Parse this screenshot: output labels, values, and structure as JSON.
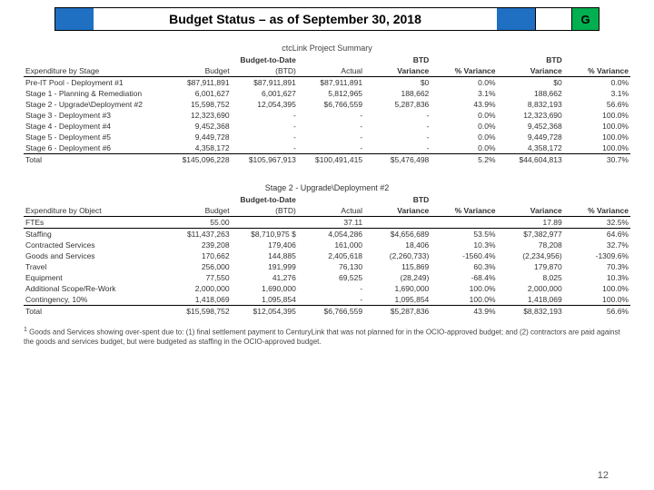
{
  "title": "Budget Status – as of September 30, 2018",
  "status_letter": "G",
  "status_bg": "#00b050",
  "page_number": "12",
  "proj_summary_label": "ctcLink Project Summary",
  "t1": {
    "h_exp": "Expenditure by Stage",
    "h_budget": "Budget",
    "h_btd1": "Budget-to-Date",
    "h_btd2": "(BTD)",
    "h_actual": "Actual",
    "h_btd_var": "BTD",
    "h_var": "Variance",
    "h_pct": "% Variance",
    "h_btd_var2": "BTD",
    "h_var2": "Variance",
    "h_pct2": "% Variance",
    "rows": [
      {
        "l": "Pre-IT Pool - Deployment #1",
        "b": "$87,911,891",
        "btd": "$87,911,891",
        "a": "$87,911,891",
        "v": "$0",
        "p": "0.0%",
        "v2": "$0",
        "p2": "0.0%"
      },
      {
        "l": "Stage 1 - Planning & Remediation",
        "b": "6,001,627",
        "btd": "6,001,627",
        "a": "5,812,965",
        "v": "188,662",
        "p": "3.1%",
        "v2": "188,662",
        "p2": "3.1%"
      },
      {
        "l": "Stage 2 - Upgrade\\Deployment #2",
        "b": "15,598,752",
        "btd": "12,054,395",
        "a": "$6,766,559",
        "v": "5,287,836",
        "p": "43.9%",
        "v2": "8,832,193",
        "p2": "56.6%"
      },
      {
        "l": "Stage 3 - Deployment #3",
        "b": "12,323,690",
        "btd": "-",
        "a": "-",
        "v": "-",
        "p": "0.0%",
        "v2": "12,323,690",
        "p2": "100.0%"
      },
      {
        "l": "Stage 4 - Deployment #4",
        "b": "9,452,368",
        "btd": "-",
        "a": "-",
        "v": "-",
        "p": "0.0%",
        "v2": "9,452,368",
        "p2": "100.0%"
      },
      {
        "l": "Stage 5 - Deployment #5",
        "b": "9,449,728",
        "btd": "-",
        "a": "-",
        "v": "-",
        "p": "0.0%",
        "v2": "9,449,728",
        "p2": "100.0%"
      },
      {
        "l": "Stage 6 - Deployment #6",
        "b": "4,358,172",
        "btd": "-",
        "a": "-",
        "v": "-",
        "p": "0.0%",
        "v2": "4,358,172",
        "p2": "100.0%"
      }
    ],
    "total": {
      "l": "Total",
      "b": "$145,096,228",
      "btd": "$105,967,913",
      "a": "$100,491,415",
      "v": "$5,476,498",
      "p": "5.2%",
      "v2": "$44,604,813",
      "p2": "30.7%"
    }
  },
  "t2_title": "Stage 2 - Upgrade\\Deployment #2",
  "t2": {
    "h_exp": "Expenditure by Object",
    "h_budget": "Budget",
    "h_btd1": "Budget-to-Date",
    "h_btd2": "(BTD)",
    "h_actual": "Actual",
    "h_btd_var": "BTD",
    "h_var": "Variance",
    "h_pct": "% Variance",
    "h_var2": "Variance",
    "h_pct2": "% Variance",
    "fte": {
      "l": "FTEs",
      "b": "55.00",
      "btd": "",
      "a": "37.11",
      "v": "",
      "p": "",
      "v2": "17.89",
      "p2": "32.5%"
    },
    "rows": [
      {
        "l": "Staffing",
        "b": "$11,437,263",
        "btd": "$8,710,975  $",
        "a": "4,054,286",
        "v": "$4,656,689",
        "p": "53.5%",
        "v2": "$7,382,977",
        "p2": "64.6%"
      },
      {
        "l": "Contracted Services",
        "b": "239,208",
        "btd": "179,406",
        "a": "161,000",
        "v": "18,406",
        "p": "10.3%",
        "v2": "78,208",
        "p2": "32.7%"
      },
      {
        "l": "Goods and Services",
        "b": "170,662",
        "btd": "144,885",
        "a": "2,405,618",
        "v": "(2,260,733)",
        "p": "-1560.4%",
        "v2": "(2,234,956)",
        "p2": "-1309.6%"
      },
      {
        "l": "Travel",
        "b": "256,000",
        "btd": "191,999",
        "a": "76,130",
        "v": "115,869",
        "p": "60.3%",
        "v2": "179,870",
        "p2": "70.3%"
      },
      {
        "l": "Equipment",
        "b": "77,550",
        "btd": "41,276",
        "a": "69,525",
        "v": "(28,249)",
        "p": "-68.4%",
        "v2": "8,025",
        "p2": "10.3%"
      },
      {
        "l": "Additional Scope/Re-Work",
        "b": "2,000,000",
        "btd": "1,690,000",
        "a": "-",
        "v": "1,690,000",
        "p": "100.0%",
        "v2": "2,000,000",
        "p2": "100.0%"
      },
      {
        "l": "Contingency, 10%",
        "b": "1,418,069",
        "btd": "1,095,854",
        "a": "-",
        "v": "1,095,854",
        "p": "100.0%",
        "v2": "1,418,069",
        "p2": "100.0%"
      }
    ],
    "total": {
      "l": "Total",
      "b": "$15,598,752",
      "btd": "$12,054,395",
      "a": "$6,766,559",
      "v": "$5,287,836",
      "p": "43.9%",
      "v2": "$8,832,193",
      "p2": "56.6%"
    }
  },
  "footnote": "Goods and Services showing over-spent due to: (1) final settlement payment to CenturyLink that was not planned for in the OCIO-approved budget; and (2) contractors are paid against the goods and services budget, but were budgeted as staffing in the OCIO-approved budget."
}
